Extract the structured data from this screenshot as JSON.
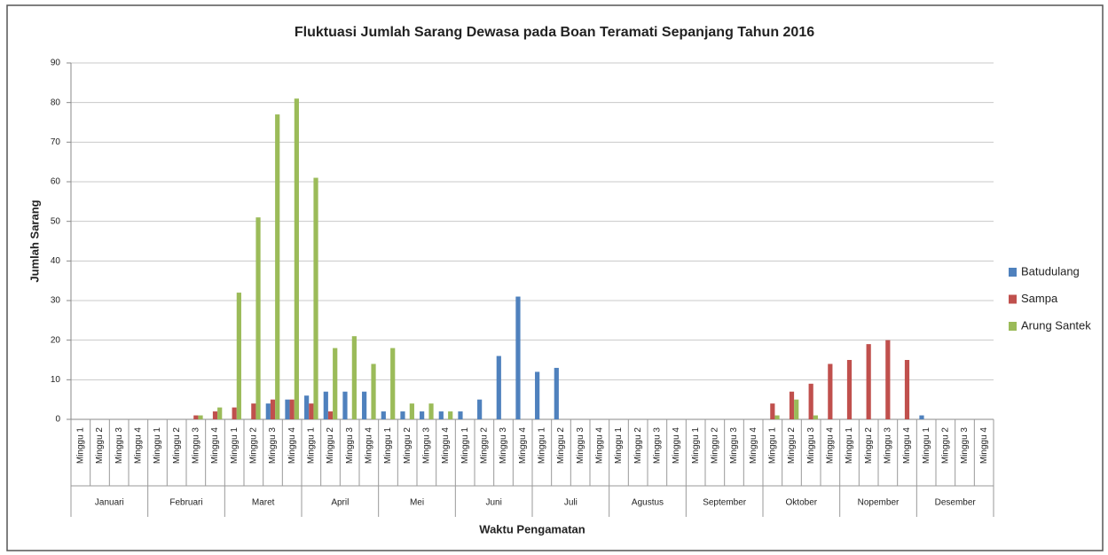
{
  "chart_data": {
    "type": "bar",
    "title": "Fluktuasi Jumlah Sarang Dewasa pada Boan  Teramati Sepanjang Tahun 2016",
    "y_label": "Jumlah Sarang",
    "x_label": "Waktu Pengamatan",
    "categories": [
      "Minggu 1",
      "Minggu 2",
      "Minggu 3",
      "Minggu 4",
      "Minggu 1",
      "Minggu 2",
      "Minggu 3",
      "Minggu 4",
      "Minggu 1",
      "Minggu 2",
      "Minggu 3",
      "Minggu 4",
      "Minggu 1",
      "Minggu 2",
      "Minggu 3",
      "Minggu 4",
      "Minggu 1",
      "Minggu 2",
      "Minggu 3",
      "Minggu 4",
      "Minggu 1",
      "Minggu 2",
      "Minggu 3",
      "Minggu 4",
      "Minggu 1",
      "Minggu 2",
      "Minggu 3",
      "Minggu 4",
      "Minggu 1",
      "Minggu 2",
      "Minggu 3",
      "Minggu 4",
      "Minggu 1",
      "Minggu 2",
      "Minggu 3",
      "Minggu 4",
      "Minggu 1",
      "Minggu 2",
      "Minggu 3",
      "Minggu 4",
      "Minggu 1",
      "Minggu 2",
      "Minggu 3",
      "Minggu 4",
      "Minggu 1",
      "Minggu 2",
      "Minggu 3",
      "Minggu 4"
    ],
    "group_labels": [
      "Januari",
      "Februari",
      "Maret",
      "April",
      "Mei",
      "Juni",
      "Juli",
      "Agustus",
      "September",
      "Oktober",
      "Nopember",
      "Desember"
    ],
    "series": [
      {
        "name": "Batudulang",
        "color": "#4f81bd",
        "values": [
          0,
          0,
          0,
          0,
          0,
          0,
          0,
          0,
          0,
          0,
          4,
          5,
          6,
          7,
          7,
          7,
          2,
          2,
          2,
          2,
          2,
          5,
          16,
          31,
          12,
          13,
          0,
          0,
          0,
          0,
          0,
          0,
          0,
          0,
          0,
          0,
          0,
          0,
          0,
          0,
          0,
          0,
          0,
          0,
          1,
          0,
          0,
          0
        ]
      },
      {
        "name": "Sampa",
        "color": "#c0504d",
        "values": [
          0,
          0,
          0,
          0,
          0,
          0,
          1,
          2,
          3,
          4,
          5,
          5,
          4,
          2,
          0,
          0,
          0,
          0,
          0,
          0,
          0,
          0,
          0,
          0,
          0,
          0,
          0,
          0,
          0,
          0,
          0,
          0,
          0,
          0,
          0,
          0,
          4,
          7,
          9,
          14,
          15,
          19,
          20,
          15,
          0,
          0,
          0,
          0
        ]
      },
      {
        "name": "Arung Santek",
        "color": "#9bbb59",
        "values": [
          0,
          0,
          0,
          0,
          0,
          0,
          1,
          3,
          32,
          51,
          77,
          81,
          61,
          18,
          21,
          14,
          18,
          4,
          4,
          2,
          0,
          0,
          0,
          0,
          0,
          0,
          0,
          0,
          0,
          0,
          0,
          0,
          0,
          0,
          0,
          0,
          1,
          5,
          1,
          0,
          0,
          0,
          0,
          0,
          0,
          0,
          0,
          0
        ]
      }
    ],
    "ylim": [
      0,
      90
    ],
    "yticks": [
      0,
      10,
      20,
      30,
      40,
      50,
      60,
      70,
      80,
      90
    ],
    "grid": true,
    "legend": "right"
  }
}
